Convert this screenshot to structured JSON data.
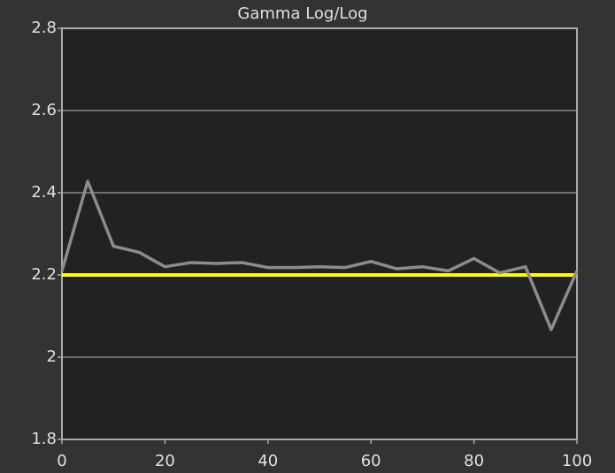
{
  "chart_data": {
    "type": "line",
    "title": "Gamma Log/Log",
    "x": [
      0,
      5,
      10,
      15,
      20,
      25,
      30,
      35,
      40,
      45,
      50,
      55,
      60,
      65,
      70,
      75,
      80,
      85,
      90,
      95,
      100
    ],
    "series": [
      {
        "color": "#ffff00",
        "values": [
          2.2,
          2.2,
          2.2,
          2.2,
          2.2,
          2.2,
          2.2,
          2.2,
          2.2,
          2.2,
          2.2,
          2.2,
          2.2,
          2.2,
          2.2,
          2.2,
          2.2,
          2.2,
          2.2,
          2.2,
          2.2
        ]
      },
      {
        "color": "#8c8c8c",
        "values": [
          2.21,
          2.428,
          2.27,
          2.255,
          2.22,
          2.23,
          2.228,
          2.23,
          2.218,
          2.218,
          2.22,
          2.218,
          2.233,
          2.215,
          2.22,
          2.21,
          2.24,
          2.205,
          2.22,
          2.067,
          2.21
        ]
      }
    ],
    "xlim": [
      0,
      100
    ],
    "xticks": [
      0,
      20,
      40,
      60,
      80,
      100
    ],
    "ylim": [
      1.8,
      2.8
    ],
    "yticks": [
      1.8,
      2,
      2.2,
      2.4,
      2.6,
      2.8
    ],
    "grid": true
  }
}
